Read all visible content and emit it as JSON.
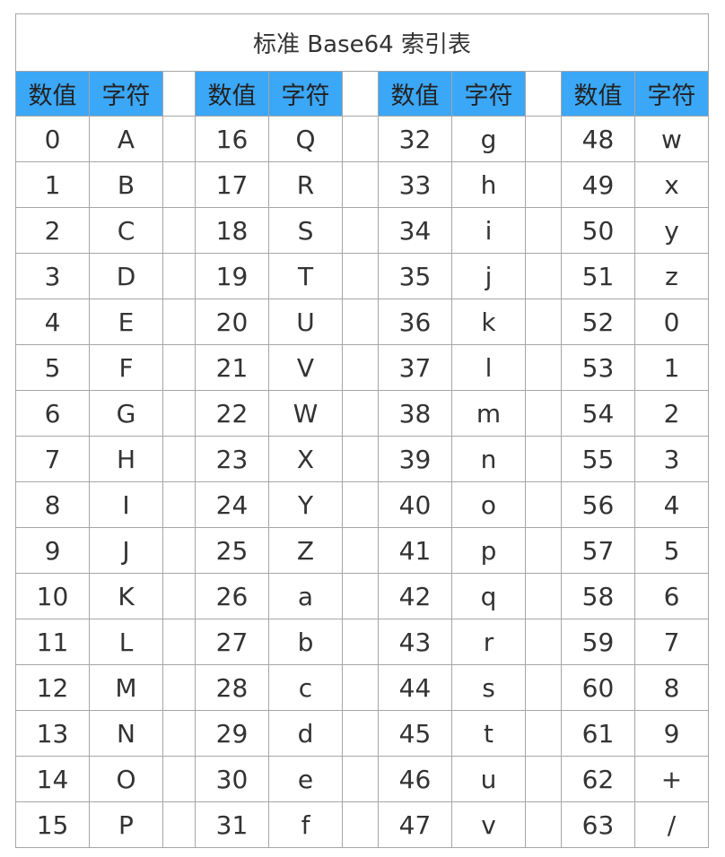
{
  "title": "标准 Base64 索引表",
  "header": {
    "num_label": "数值",
    "char_label": "字符"
  },
  "groups": [
    {
      "rows": [
        [
          "0",
          "A"
        ],
        [
          "1",
          "B"
        ],
        [
          "2",
          "C"
        ],
        [
          "3",
          "D"
        ],
        [
          "4",
          "E"
        ],
        [
          "5",
          "F"
        ],
        [
          "6",
          "G"
        ],
        [
          "7",
          "H"
        ],
        [
          "8",
          "I"
        ],
        [
          "9",
          "J"
        ],
        [
          "10",
          "K"
        ],
        [
          "11",
          "L"
        ],
        [
          "12",
          "M"
        ],
        [
          "13",
          "N"
        ],
        [
          "14",
          "O"
        ],
        [
          "15",
          "P"
        ]
      ]
    },
    {
      "rows": [
        [
          "16",
          "Q"
        ],
        [
          "17",
          "R"
        ],
        [
          "18",
          "S"
        ],
        [
          "19",
          "T"
        ],
        [
          "20",
          "U"
        ],
        [
          "21",
          "V"
        ],
        [
          "22",
          "W"
        ],
        [
          "23",
          "X"
        ],
        [
          "24",
          "Y"
        ],
        [
          "25",
          "Z"
        ],
        [
          "26",
          "a"
        ],
        [
          "27",
          "b"
        ],
        [
          "28",
          "c"
        ],
        [
          "29",
          "d"
        ],
        [
          "30",
          "e"
        ],
        [
          "31",
          "f"
        ]
      ]
    },
    {
      "rows": [
        [
          "32",
          "g"
        ],
        [
          "33",
          "h"
        ],
        [
          "34",
          "i"
        ],
        [
          "35",
          "j"
        ],
        [
          "36",
          "k"
        ],
        [
          "37",
          "l"
        ],
        [
          "38",
          "m"
        ],
        [
          "39",
          "n"
        ],
        [
          "40",
          "o"
        ],
        [
          "41",
          "p"
        ],
        [
          "42",
          "q"
        ],
        [
          "43",
          "r"
        ],
        [
          "44",
          "s"
        ],
        [
          "45",
          "t"
        ],
        [
          "46",
          "u"
        ],
        [
          "47",
          "v"
        ]
      ]
    },
    {
      "rows": [
        [
          "48",
          "w"
        ],
        [
          "49",
          "x"
        ],
        [
          "50",
          "y"
        ],
        [
          "51",
          "z"
        ],
        [
          "52",
          "0"
        ],
        [
          "53",
          "1"
        ],
        [
          "54",
          "2"
        ],
        [
          "55",
          "3"
        ],
        [
          "56",
          "4"
        ],
        [
          "57",
          "5"
        ],
        [
          "58",
          "6"
        ],
        [
          "59",
          "7"
        ],
        [
          "60",
          "8"
        ],
        [
          "61",
          "9"
        ],
        [
          "62",
          "+"
        ],
        [
          "63",
          "/"
        ]
      ]
    }
  ],
  "colors": {
    "header_bg": "#3ba7f7",
    "border": "#a6a6a6"
  }
}
